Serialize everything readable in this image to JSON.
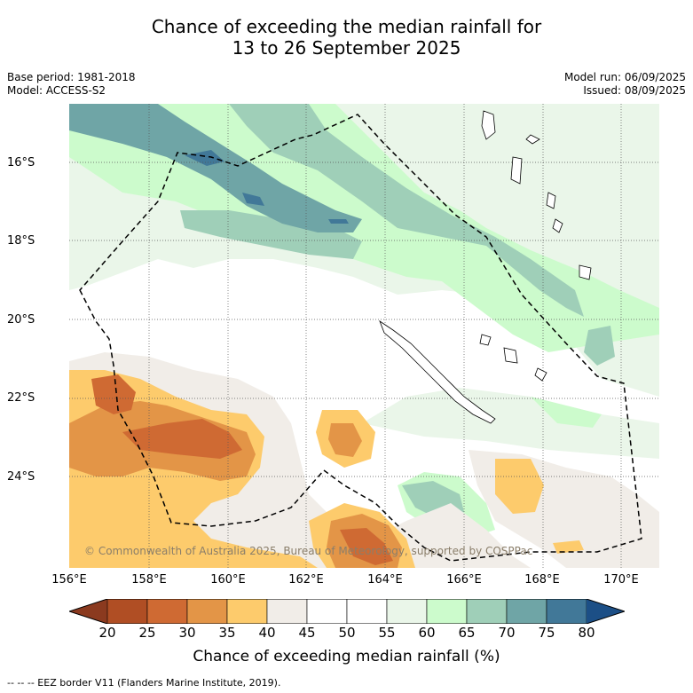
{
  "title_line1": "Chance of exceeding the median rainfall for",
  "title_line2": "13 to 26 September 2025",
  "meta_left": {
    "base_period": "Base period: 1981-2018",
    "model": "Model: ACCESS-S2"
  },
  "meta_right": {
    "model_run": "Model run: 06/09/2025",
    "issued": "Issued: 08/09/2025"
  },
  "lat_labels": [
    "16°S",
    "18°S",
    "20°S",
    "22°S",
    "24°S"
  ],
  "lon_labels": [
    "156°E",
    "158°E",
    "160°E",
    "162°E",
    "164°E",
    "166°E",
    "168°E",
    "170°E"
  ],
  "copyright": "© Commonwealth of Australia 2025, Bureau of Meteorology, supported by COSPPac",
  "colorbar": {
    "ticks": [
      "20",
      "25",
      "30",
      "35",
      "40",
      "45",
      "50",
      "55",
      "60",
      "65",
      "70",
      "75",
      "80"
    ],
    "label": "Chance of exceeding median rainfall (%)",
    "colors": [
      "#8b3a1f",
      "#b04e24",
      "#cf6a33",
      "#e39547",
      "#fdcb6c",
      "#f1ede8",
      "#ffffff",
      "#ffffff",
      "#eaf6e9",
      "#ccfbcc",
      "#9fcfb8",
      "#6fa5a6",
      "#417898",
      "#1c4f86"
    ]
  },
  "footnote": "--  --  -- EEZ border V11 (Flanders Marine Institute, 2019).",
  "chart_data": {
    "type": "heatmap",
    "xlabel": "",
    "ylabel": "",
    "x_range": [
      "156°E",
      "171°E"
    ],
    "y_range": [
      "14.5°S",
      "26°S"
    ],
    "colorbar_range": [
      20,
      80
    ],
    "grid": true
  }
}
